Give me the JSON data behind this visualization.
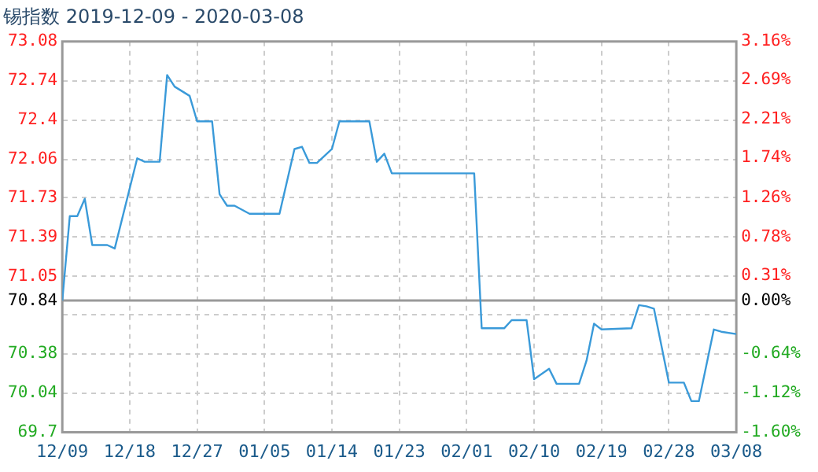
{
  "chart_data": {
    "type": "line",
    "title": "锡指数 2019-12-09 - 2020-03-08",
    "x": [
      "2019-12-09",
      "2019-12-10",
      "2019-12-11",
      "2019-12-12",
      "2019-12-13",
      "2019-12-15",
      "2019-12-16",
      "2019-12-19",
      "2019-12-20",
      "2019-12-22",
      "2019-12-23",
      "2019-12-24",
      "2019-12-26",
      "2019-12-27",
      "2019-12-29",
      "2019-12-30",
      "2019-12-31",
      "2020-01-01",
      "2020-01-03",
      "2020-01-07",
      "2020-01-09",
      "2020-01-10",
      "2020-01-11",
      "2020-01-12",
      "2020-01-14",
      "2020-01-15",
      "2020-01-19",
      "2020-01-20",
      "2020-01-21",
      "2020-01-22",
      "2020-02-02",
      "2020-02-03",
      "2020-02-06",
      "2020-02-07",
      "2020-02-09",
      "2020-02-10",
      "2020-02-12",
      "2020-02-13",
      "2020-02-16",
      "2020-02-17",
      "2020-02-18",
      "2020-02-19",
      "2020-02-23",
      "2020-02-24",
      "2020-02-25",
      "2020-02-26",
      "2020-02-28",
      "2020-03-01",
      "2020-03-02",
      "2020-03-03",
      "2020-03-05",
      "2020-03-06",
      "2020-03-08"
    ],
    "series": [
      {
        "color": "#3a9ad9",
        "values": [
          70.84,
          71.57,
          71.57,
          71.72,
          71.32,
          71.32,
          71.29,
          72.07,
          72.04,
          72.04,
          72.79,
          72.69,
          72.61,
          72.39,
          72.39,
          71.76,
          71.66,
          71.66,
          71.59,
          71.59,
          72.15,
          72.17,
          72.03,
          72.03,
          72.15,
          72.39,
          72.39,
          72.04,
          72.11,
          71.94,
          71.94,
          70.6,
          70.6,
          70.67,
          70.67,
          70.16,
          70.25,
          70.12,
          70.12,
          70.32,
          70.64,
          70.59,
          70.6,
          70.8,
          70.79,
          70.77,
          70.13,
          70.13,
          69.97,
          69.97,
          70.59,
          70.57,
          70.55
        ]
      }
    ],
    "xlim": [
      "2019-12-09",
      "2020-03-08"
    ],
    "xticks": [
      {
        "value": "2019-12-09",
        "label": "12/09"
      },
      {
        "value": "2019-12-18",
        "label": "12/18"
      },
      {
        "value": "2019-12-27",
        "label": "12/27"
      },
      {
        "value": "2020-01-05",
        "label": "01/05"
      },
      {
        "value": "2020-01-14",
        "label": "01/14"
      },
      {
        "value": "2020-01-23",
        "label": "01/23"
      },
      {
        "value": "2020-02-01",
        "label": "02/01"
      },
      {
        "value": "2020-02-10",
        "label": "02/10"
      },
      {
        "value": "2020-02-19",
        "label": "02/19"
      },
      {
        "value": "2020-02-28",
        "label": "02/28"
      },
      {
        "value": "2020-03-08",
        "label": "03/08"
      }
    ],
    "ylim": [
      69.7,
      73.08
    ],
    "yticks": [
      69.7,
      70.04,
      70.38,
      {
        "value": 70.72,
        "label": null
      },
      70.84,
      71.05,
      71.39,
      71.73,
      72.06,
      72.4,
      72.74,
      73.08
    ],
    "y2lim": [
      -1.6,
      3.16
    ],
    "y2ticks": [
      {
        "value": -1.6,
        "label": "-1.60%"
      },
      {
        "value": -1.12,
        "label": "-1.12%"
      },
      {
        "value": -0.64,
        "label": "-0.64%"
      },
      {
        "value": -0.17,
        "label": null
      },
      {
        "value": 0,
        "label": "0.00%"
      },
      {
        "value": 0.31,
        "label": "0.31%"
      },
      {
        "value": 0.78,
        "label": "0.78%"
      },
      {
        "value": 1.26,
        "label": "1.26%"
      },
      {
        "value": 1.74,
        "label": "1.74%"
      },
      {
        "value": 2.21,
        "label": "2.21%"
      },
      {
        "value": 2.69,
        "label": "2.69%"
      },
      {
        "value": 3.16,
        "label": "3.16%"
      }
    ],
    "ref_lines": [
      {
        "axis": "y",
        "value": 70.84,
        "color": "#999999"
      }
    ],
    "grid": true,
    "marker": "none",
    "line_style": "solid",
    "legend": false
  }
}
